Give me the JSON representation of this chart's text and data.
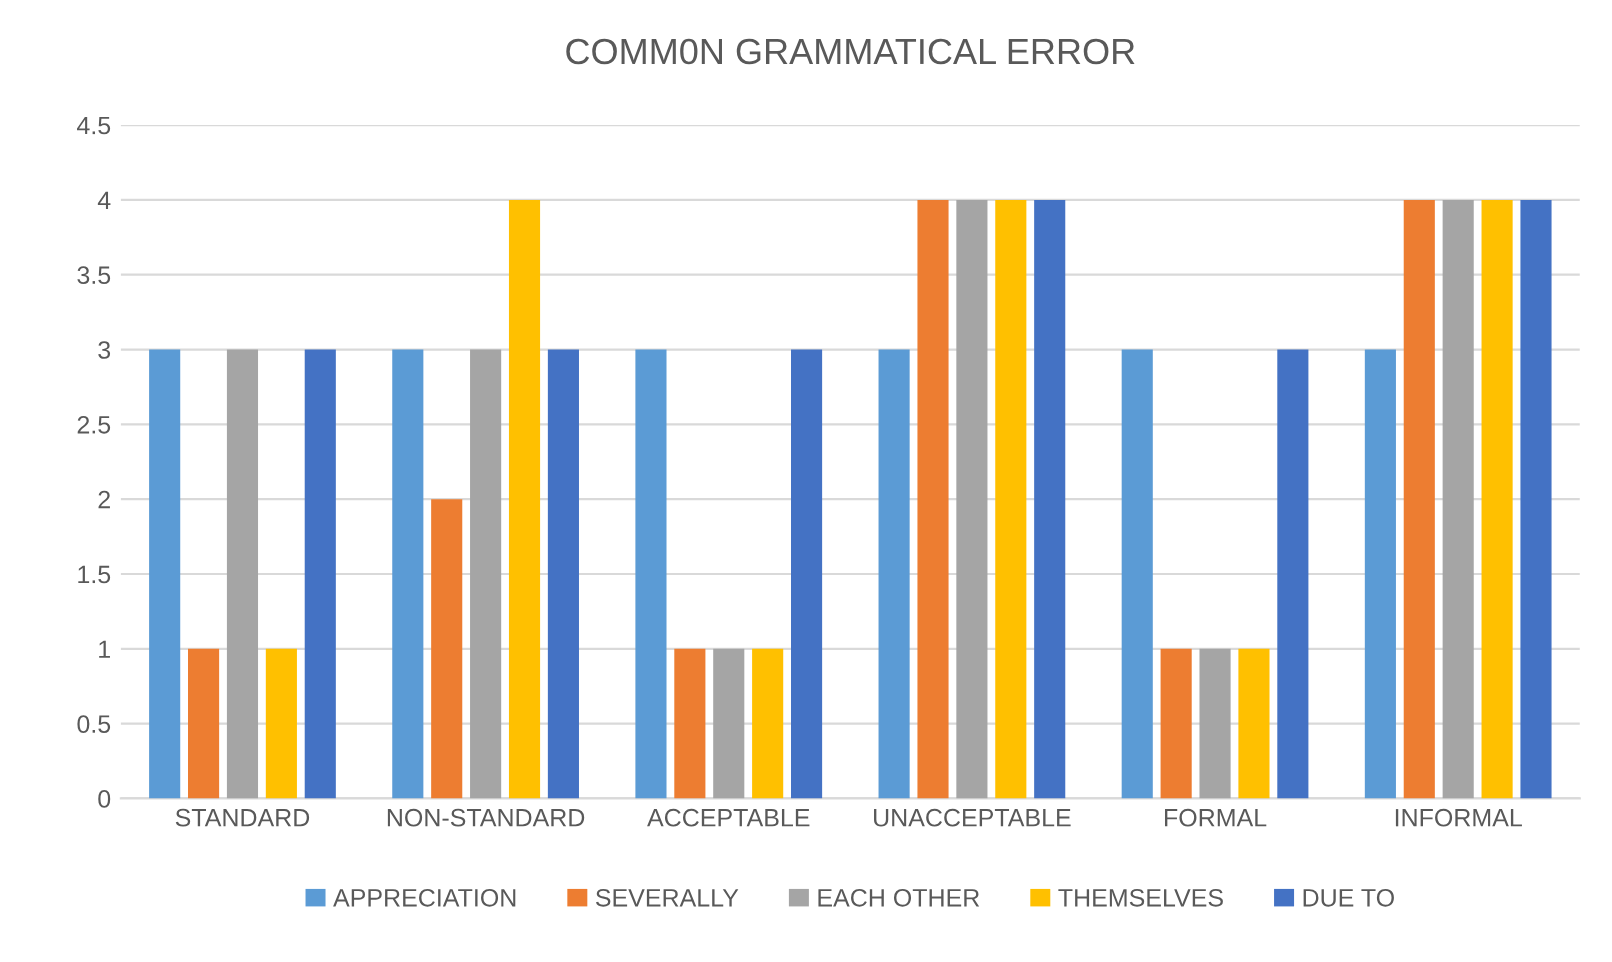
{
  "chart_data": {
    "type": "bar",
    "title": "COMM0N GRAMMATICAL ERROR",
    "categories": [
      "STANDARD",
      "NON-STANDARD",
      "ACCEPTABLE",
      "UNACCEPTABLE",
      "FORMAL",
      "INFORMAL"
    ],
    "series": [
      {
        "name": "APPRECIATION",
        "color": "#5b9bd5",
        "values": [
          3,
          3,
          3,
          3,
          3,
          3
        ]
      },
      {
        "name": "SEVERALLY",
        "color": "#ed7d31",
        "values": [
          1,
          2,
          1,
          4,
          1,
          4
        ]
      },
      {
        "name": "EACH OTHER",
        "color": "#a5a5a5",
        "values": [
          3,
          3,
          1,
          4,
          1,
          4
        ]
      },
      {
        "name": "THEMSELVES",
        "color": "#ffc000",
        "values": [
          1,
          4,
          1,
          4,
          1,
          4
        ]
      },
      {
        "name": "DUE TO",
        "color": "#4472c4",
        "values": [
          3,
          3,
          3,
          4,
          3,
          4
        ]
      }
    ],
    "ylim": [
      0,
      4.5
    ],
    "yticks": [
      0,
      0.5,
      1,
      1.5,
      2,
      2.5,
      3,
      3.5,
      4,
      4.5
    ],
    "grid": "y",
    "legend": "bottom"
  }
}
